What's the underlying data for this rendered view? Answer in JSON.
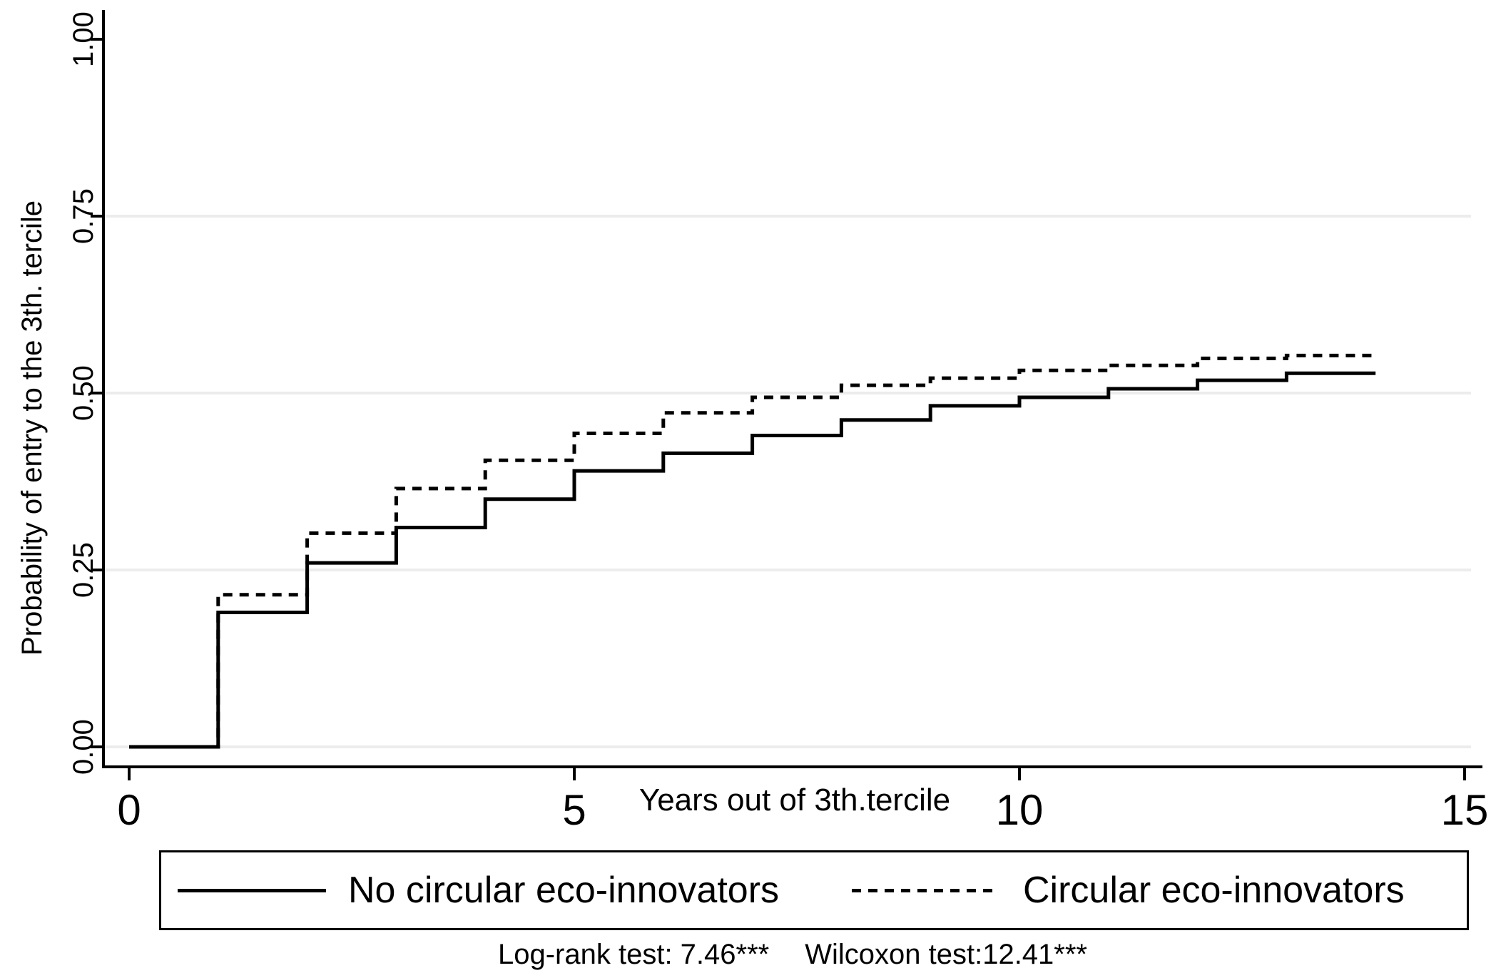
{
  "figure": {
    "background": "#ffffff",
    "line_color": "#000000",
    "grid_color": "#ececec",
    "legend": {
      "border_color": "#000000",
      "items": [
        {
          "label": "No circular eco-innovators",
          "style": "solid"
        },
        {
          "label": "Circular eco-innovators",
          "style": "dotted"
        }
      ]
    }
  },
  "chart_data": {
    "type": "line",
    "step": true,
    "title": "",
    "xlabel": "Years out of 3th.tercile",
    "ylabel": "Probability of entry to the 3th. tercile",
    "xlim": [
      0,
      15
    ],
    "ylim": [
      0,
      1
    ],
    "xticks": [
      0,
      5,
      10,
      15
    ],
    "ytick_values": [
      0,
      0.25,
      0.5,
      0.75,
      1
    ],
    "ytick_labels": [
      "0.00",
      "0.25",
      "0.50",
      "0.75",
      "1.00"
    ],
    "gridlines_y": [
      0,
      0.25,
      0.5,
      0.75
    ],
    "grid": "horizontal only",
    "legend_position": "bottom",
    "series": [
      {
        "name": "No circular eco-innovators",
        "style": "solid",
        "x": [
          0,
          1,
          2,
          3,
          4,
          5,
          6,
          7,
          8,
          9,
          10,
          11,
          12,
          13,
          14
        ],
        "y": [
          0,
          0.19,
          0.26,
          0.31,
          0.35,
          0.39,
          0.415,
          0.44,
          0.462,
          0.482,
          0.494,
          0.506,
          0.518,
          0.528,
          0.528
        ]
      },
      {
        "name": "Circular eco-innovators",
        "style": "dotted",
        "x": [
          0,
          1,
          2,
          3,
          4,
          5,
          6,
          7,
          8,
          9,
          10,
          11,
          12,
          13,
          14
        ],
        "y": [
          0,
          0.215,
          0.302,
          0.365,
          0.405,
          0.443,
          0.472,
          0.494,
          0.511,
          0.521,
          0.532,
          0.539,
          0.549,
          0.553,
          0.553
        ]
      }
    ],
    "annotations": [
      "Log-rank test: 7.46***",
      "Wilcoxon test:12.41***"
    ]
  }
}
